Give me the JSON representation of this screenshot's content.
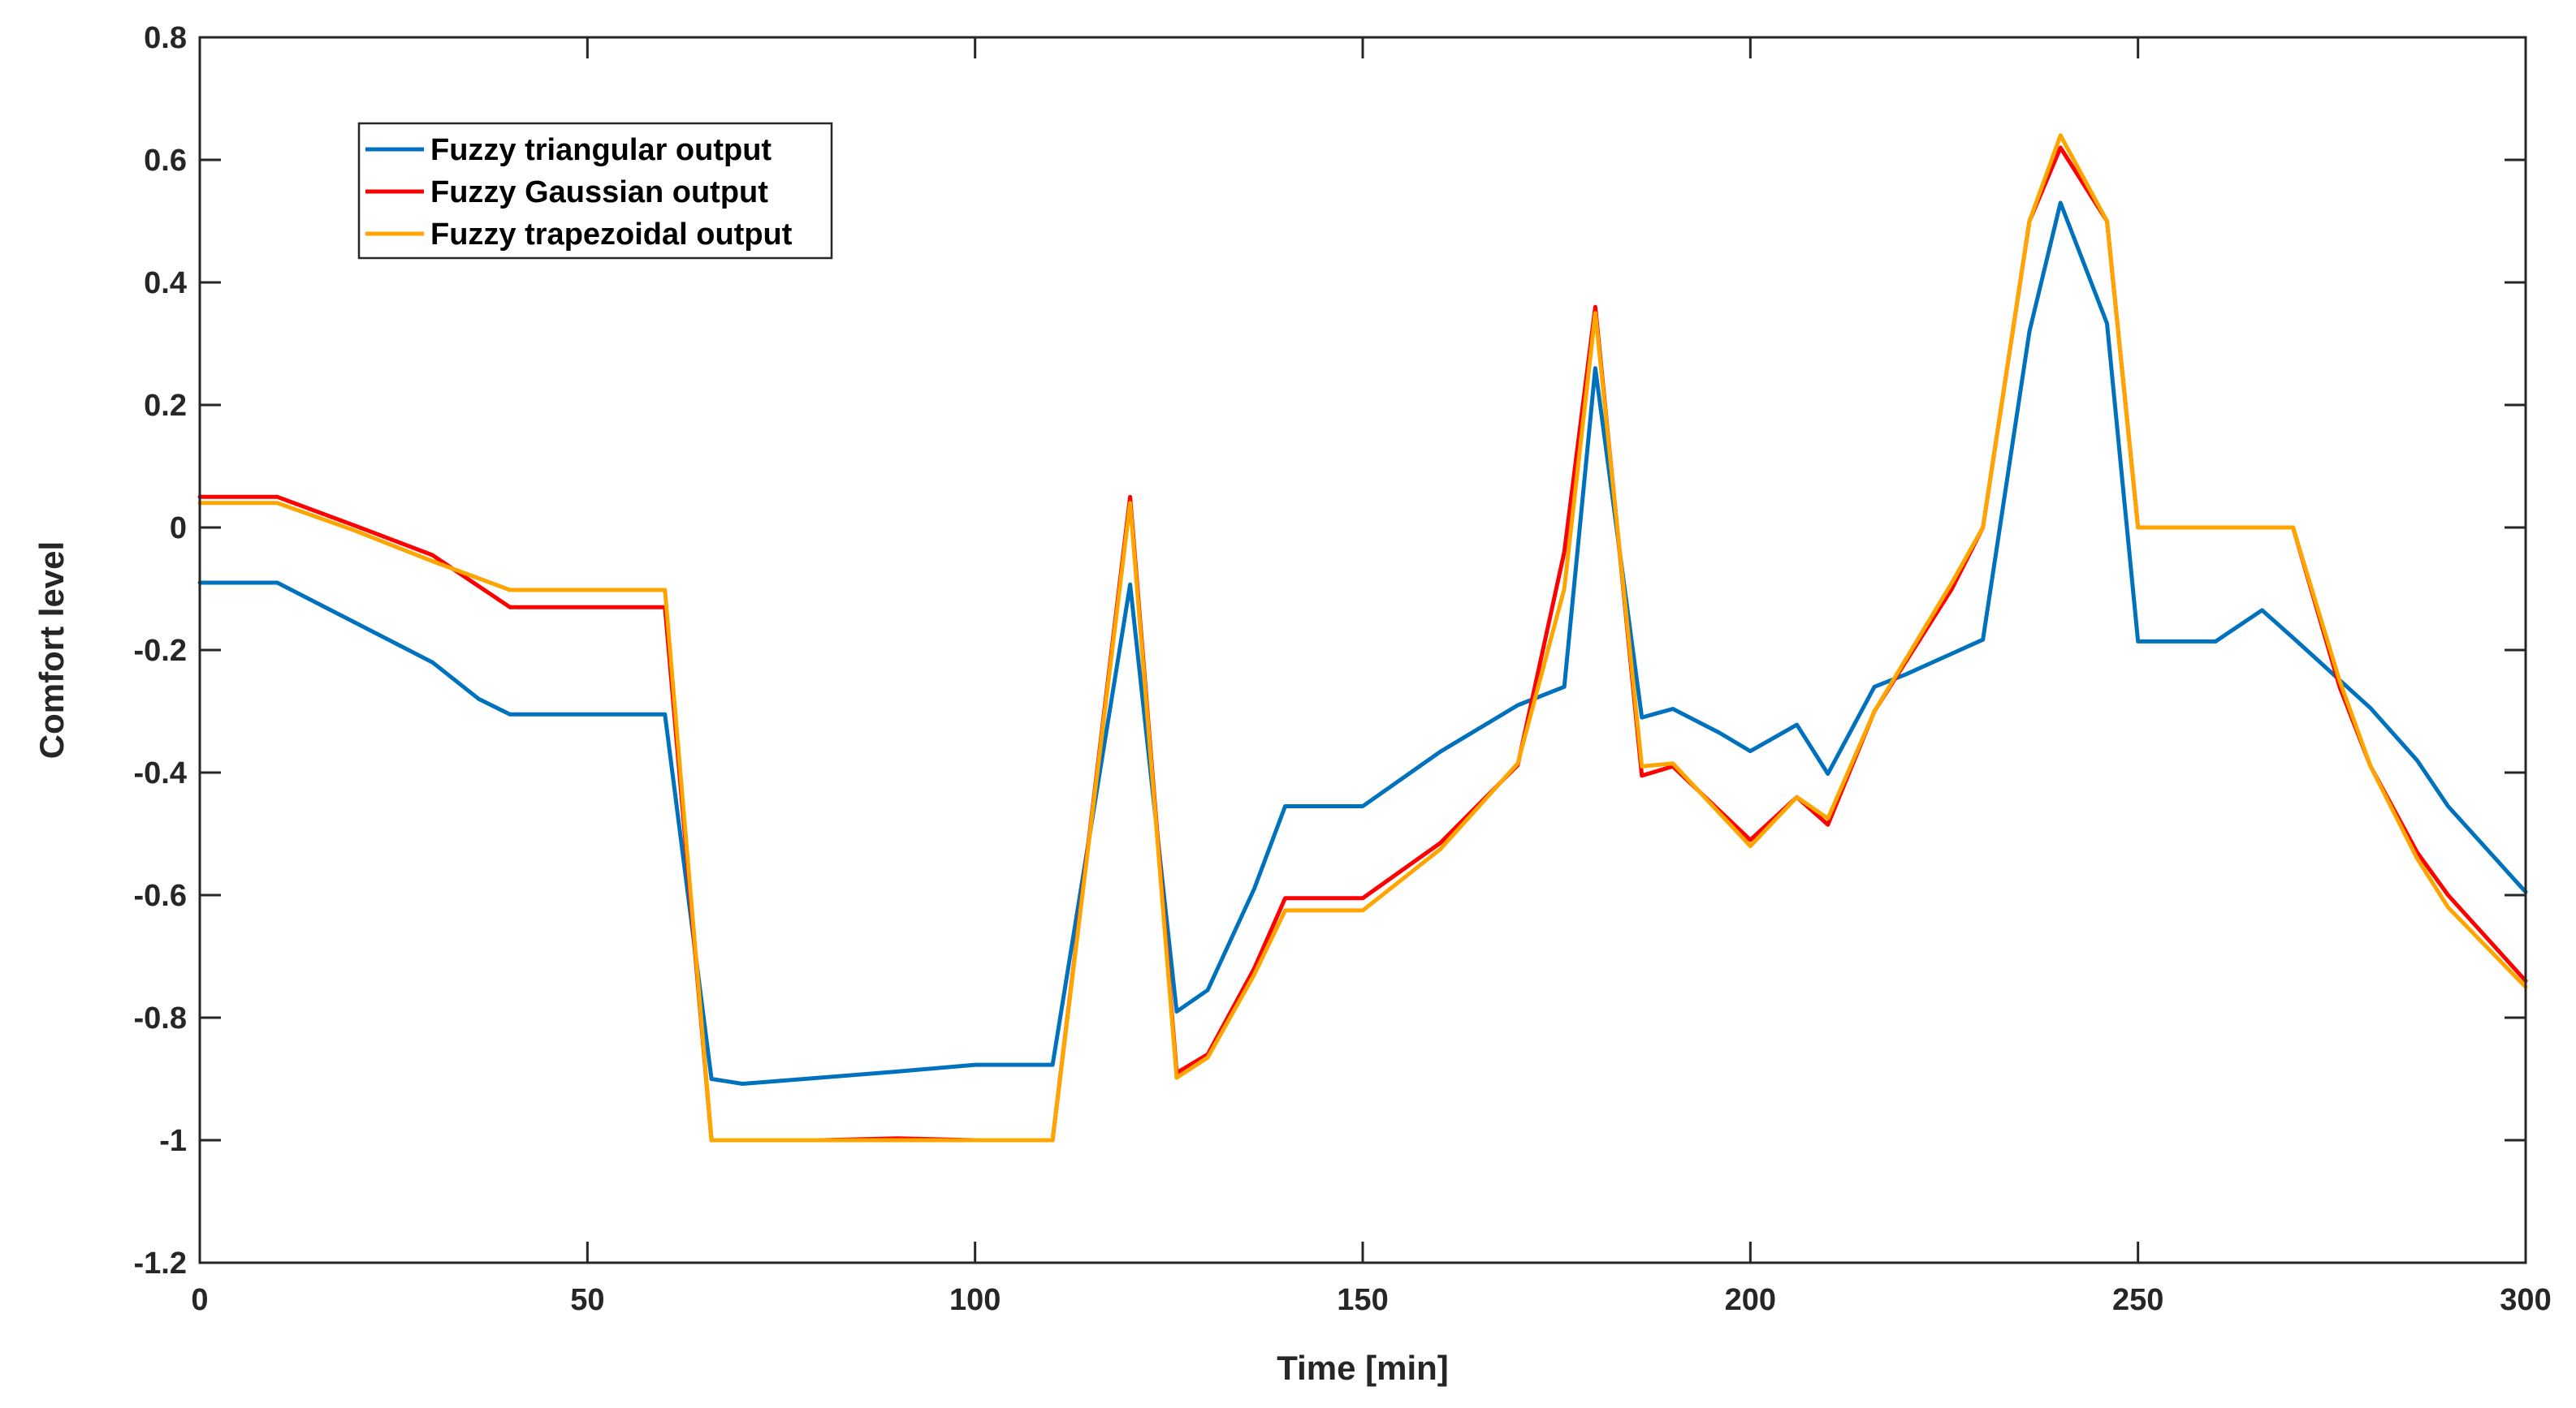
{
  "chart_data": {
    "type": "line",
    "title": "",
    "xlabel": "Time [min]",
    "ylabel": "Comfort level",
    "xlim": [
      0,
      300
    ],
    "ylim": [
      -1.2,
      0.8
    ],
    "xticks": [
      0,
      50,
      100,
      150,
      200,
      250,
      300
    ],
    "yticks": [
      -1.2,
      -1,
      -0.8,
      -0.6,
      -0.4,
      -0.2,
      0,
      0.2,
      0.4,
      0.6,
      0.8
    ],
    "xtick_labels": [
      "0",
      "50",
      "100",
      "150",
      "200",
      "250",
      "300"
    ],
    "ytick_labels": [
      "-1.2",
      "-1",
      "-0.8",
      "-0.6",
      "-0.4",
      "-0.2",
      "0",
      "0.2",
      "0.4",
      "0.6",
      "0.8"
    ],
    "grid": false,
    "legend_position": "top-left",
    "series": [
      {
        "name": "Fuzzy triangular output",
        "color": "#0072BD",
        "points": [
          [
            0,
            -0.09
          ],
          [
            10,
            -0.09
          ],
          [
            20,
            -0.155
          ],
          [
            30,
            -0.22
          ],
          [
            36,
            -0.28
          ],
          [
            40,
            -0.305
          ],
          [
            50,
            -0.305
          ],
          [
            60,
            -0.305
          ],
          [
            66,
            -0.9
          ],
          [
            70,
            -0.908
          ],
          [
            80,
            -0.898
          ],
          [
            90,
            -0.888
          ],
          [
            100,
            -0.877
          ],
          [
            110,
            -0.877
          ],
          [
            120,
            -0.093
          ],
          [
            126,
            -0.79
          ],
          [
            130,
            -0.755
          ],
          [
            136,
            -0.59
          ],
          [
            140,
            -0.455
          ],
          [
            150,
            -0.455
          ],
          [
            160,
            -0.366
          ],
          [
            170,
            -0.29
          ],
          [
            176,
            -0.26
          ],
          [
            180,
            0.26
          ],
          [
            186,
            -0.31
          ],
          [
            190,
            -0.296
          ],
          [
            196,
            -0.335
          ],
          [
            200,
            -0.365
          ],
          [
            206,
            -0.322
          ],
          [
            210,
            -0.402
          ],
          [
            216,
            -0.26
          ],
          [
            220,
            -0.24
          ],
          [
            230,
            -0.183
          ],
          [
            236,
            0.32
          ],
          [
            240,
            0.53
          ],
          [
            246,
            0.333
          ],
          [
            250,
            -0.186
          ],
          [
            260,
            -0.186
          ],
          [
            266,
            -0.135
          ],
          [
            270,
            -0.18
          ],
          [
            280,
            -0.295
          ],
          [
            286,
            -0.38
          ],
          [
            290,
            -0.455
          ],
          [
            300,
            -0.595
          ]
        ]
      },
      {
        "name": "Fuzzy Gaussian output",
        "color": "#FF0000",
        "points": [
          [
            0,
            0.05
          ],
          [
            10,
            0.05
          ],
          [
            20,
            0.003
          ],
          [
            30,
            -0.045
          ],
          [
            40,
            -0.13
          ],
          [
            50,
            -0.13
          ],
          [
            60,
            -0.13
          ],
          [
            66,
            -1.0
          ],
          [
            80,
            -1.0
          ],
          [
            90,
            -0.997
          ],
          [
            100,
            -1.0
          ],
          [
            110,
            -1.0
          ],
          [
            120,
            0.05
          ],
          [
            126,
            -0.89
          ],
          [
            130,
            -0.86
          ],
          [
            136,
            -0.72
          ],
          [
            140,
            -0.605
          ],
          [
            150,
            -0.605
          ],
          [
            160,
            -0.515
          ],
          [
            170,
            -0.388
          ],
          [
            176,
            -0.04
          ],
          [
            180,
            0.36
          ],
          [
            186,
            -0.405
          ],
          [
            190,
            -0.39
          ],
          [
            200,
            -0.51
          ],
          [
            206,
            -0.44
          ],
          [
            210,
            -0.485
          ],
          [
            216,
            -0.3
          ],
          [
            226,
            -0.1
          ],
          [
            230,
            0.0
          ],
          [
            236,
            0.5
          ],
          [
            240,
            0.62
          ],
          [
            246,
            0.5
          ],
          [
            250,
            0.0
          ],
          [
            260,
            0.0
          ],
          [
            270,
            0.0
          ],
          [
            276,
            -0.26
          ],
          [
            280,
            -0.39
          ],
          [
            286,
            -0.53
          ],
          [
            290,
            -0.6
          ],
          [
            300,
            -0.74
          ]
        ]
      },
      {
        "name": "Fuzzy trapezoidal output",
        "color": "#FFA500",
        "points": [
          [
            0,
            0.04
          ],
          [
            10,
            0.04
          ],
          [
            20,
            -0.005
          ],
          [
            30,
            -0.055
          ],
          [
            40,
            -0.102
          ],
          [
            50,
            -0.102
          ],
          [
            60,
            -0.102
          ],
          [
            66,
            -1.0
          ],
          [
            80,
            -1.0
          ],
          [
            90,
            -1.0
          ],
          [
            100,
            -1.0
          ],
          [
            110,
            -1.0
          ],
          [
            120,
            0.04
          ],
          [
            126,
            -0.898
          ],
          [
            130,
            -0.865
          ],
          [
            136,
            -0.73
          ],
          [
            140,
            -0.625
          ],
          [
            150,
            -0.625
          ],
          [
            160,
            -0.525
          ],
          [
            170,
            -0.385
          ],
          [
            176,
            -0.1
          ],
          [
            180,
            0.35
          ],
          [
            186,
            -0.39
          ],
          [
            190,
            -0.385
          ],
          [
            200,
            -0.52
          ],
          [
            206,
            -0.44
          ],
          [
            210,
            -0.475
          ],
          [
            216,
            -0.3
          ],
          [
            226,
            -0.09
          ],
          [
            230,
            0.0
          ],
          [
            236,
            0.5
          ],
          [
            240,
            0.64
          ],
          [
            246,
            0.5
          ],
          [
            250,
            0.0
          ],
          [
            260,
            0.0
          ],
          [
            270,
            0.0
          ],
          [
            276,
            -0.25
          ],
          [
            280,
            -0.39
          ],
          [
            286,
            -0.54
          ],
          [
            290,
            -0.62
          ],
          [
            300,
            -0.75
          ]
        ]
      }
    ]
  }
}
